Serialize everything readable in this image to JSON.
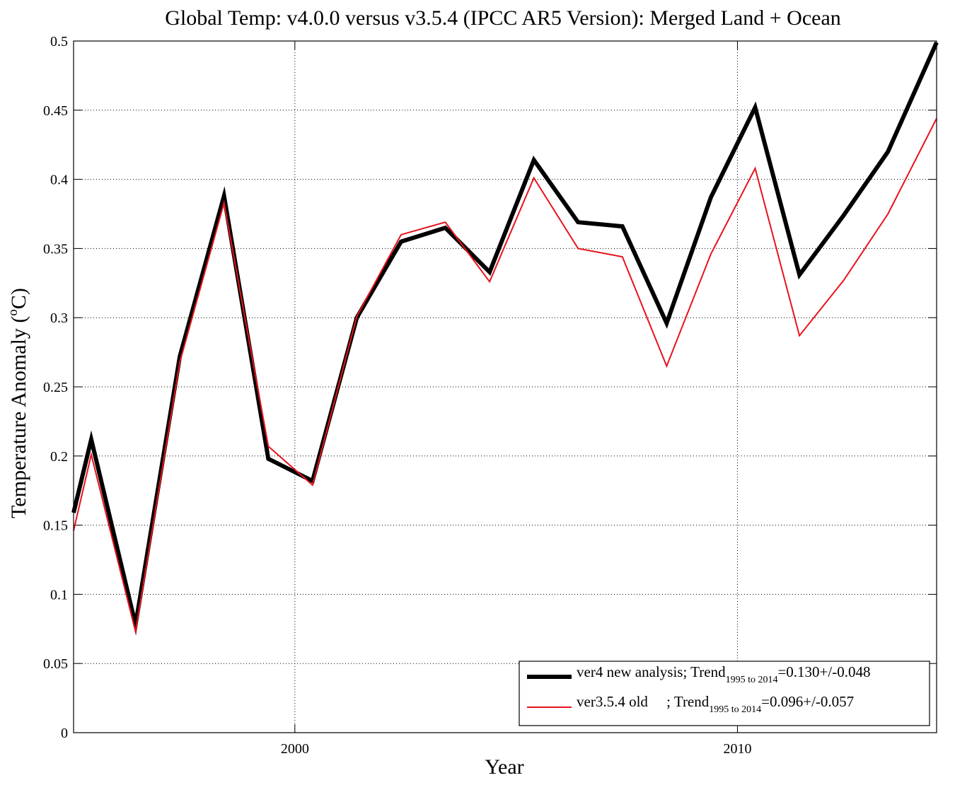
{
  "chart_data": {
    "type": "line",
    "title": "Global Temp: v4.0.0 versus v3.5.4 (IPCC AR5 Version): Merged Land + Ocean",
    "xlabel": "Year",
    "ylabel_main": "Temperature Anomaly (",
    "ylabel_sup": "o",
    "ylabel_end": "C)",
    "xlim": [
      1995,
      2014.5
    ],
    "ylim": [
      0,
      0.5
    ],
    "x_ticks": [
      2000,
      2010
    ],
    "x_tick_labels": [
      "2000",
      "2010"
    ],
    "y_ticks": [
      0,
      0.05,
      0.1,
      0.15,
      0.2,
      0.25,
      0.3,
      0.35,
      0.4,
      0.45,
      0.5
    ],
    "y_tick_labels": [
      "0",
      "0.05",
      "0.1",
      "0.15",
      "0.2",
      "0.25",
      "0.3",
      "0.35",
      "0.4",
      "0.45",
      "0.5"
    ],
    "grid": true,
    "legend_position": "bottom-right",
    "x": [
      1995,
      1995.4,
      1996.4,
      1997.4,
      1998.4,
      1999.4,
      2000.4,
      2001.4,
      2002.4,
      2003.4,
      2004.4,
      2005.4,
      2006.4,
      2007.4,
      2008.4,
      2009.4,
      2010.4,
      2011.4,
      2012.4,
      2013.4,
      2014.5
    ],
    "series": [
      {
        "name": "ver4 new analysis; Trend",
        "legend_sub": "1995 to 2014",
        "legend_tail": "=0.130+/-0.048",
        "color": "#000000",
        "width": 6,
        "values": [
          0.159,
          0.212,
          0.078,
          0.272,
          0.388,
          0.198,
          0.182,
          0.3,
          0.355,
          0.365,
          0.333,
          0.414,
          0.369,
          0.366,
          0.296,
          0.387,
          0.452,
          0.331,
          0.374,
          0.42,
          0.499
        ]
      },
      {
        "name": "ver3.5.4 old     ; Trend",
        "legend_sub": "1995 to 2014",
        "legend_tail": "=0.096+/-0.057",
        "color": "#e8121c",
        "width": 2,
        "values": [
          0.146,
          0.201,
          0.073,
          0.268,
          0.383,
          0.207,
          0.179,
          0.301,
          0.36,
          0.369,
          0.326,
          0.401,
          0.35,
          0.344,
          0.265,
          0.346,
          0.408,
          0.287,
          0.327,
          0.375,
          0.444
        ]
      }
    ]
  }
}
